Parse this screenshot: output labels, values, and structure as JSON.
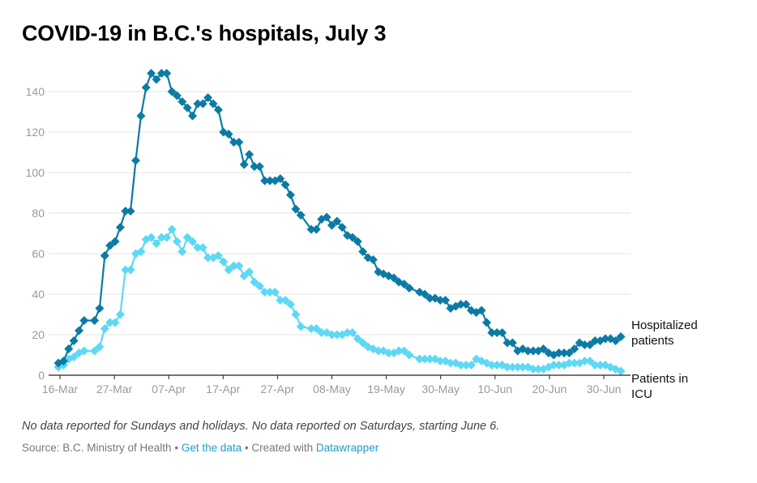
{
  "title": "COVID-19 in B.C.'s hospitals, July 3",
  "note": "No data reported for Sundays and holidays. No data reported on Saturdays, starting June 6.",
  "footer": {
    "source": "Source: B.C. Ministry of Health",
    "separator": " • ",
    "get_data": "Get the data",
    "created_with": "Created with ",
    "tool": "Datawrapper"
  },
  "chart_data": {
    "type": "line",
    "title": "COVID-19 in B.C.'s hospitals, July 3",
    "xlabel": "",
    "ylabel": "",
    "x_ticks": [
      "16-Mar",
      "27-Mar",
      "07-Apr",
      "17-Apr",
      "27-Apr",
      "08-May",
      "19-May",
      "30-May",
      "10-Jun",
      "20-Jun",
      "30-Jun"
    ],
    "y_ticks": [
      0,
      20,
      40,
      60,
      80,
      100,
      120,
      140
    ],
    "ylim": [
      0,
      150
    ],
    "x_range": [
      "2020-03-16",
      "2020-07-03"
    ],
    "grid": true,
    "series": [
      {
        "name": "Hospitalized patients",
        "color": "#0b7ba5",
        "marker": "diamond",
        "points": [
          [
            "2020-03-16",
            6
          ],
          [
            "2020-03-17",
            7
          ],
          [
            "2020-03-18",
            13
          ],
          [
            "2020-03-19",
            17
          ],
          [
            "2020-03-20",
            22
          ],
          [
            "2020-03-21",
            27
          ],
          [
            "2020-03-23",
            27
          ],
          [
            "2020-03-24",
            33
          ],
          [
            "2020-03-25",
            59
          ],
          [
            "2020-03-26",
            64
          ],
          [
            "2020-03-27",
            66
          ],
          [
            "2020-03-28",
            73
          ],
          [
            "2020-03-29",
            81
          ],
          [
            "2020-03-30",
            81
          ],
          [
            "2020-03-31",
            106
          ],
          [
            "2020-04-01",
            128
          ],
          [
            "2020-04-02",
            142
          ],
          [
            "2020-04-03",
            149
          ],
          [
            "2020-04-04",
            146
          ],
          [
            "2020-04-05",
            149
          ],
          [
            "2020-04-06",
            149
          ],
          [
            "2020-04-07",
            140
          ],
          [
            "2020-04-08",
            138
          ],
          [
            "2020-04-09",
            135
          ],
          [
            "2020-04-10",
            132
          ],
          [
            "2020-04-11",
            128
          ],
          [
            "2020-04-12",
            134
          ],
          [
            "2020-04-13",
            134
          ],
          [
            "2020-04-14",
            137
          ],
          [
            "2020-04-15",
            134
          ],
          [
            "2020-04-16",
            131
          ],
          [
            "2020-04-17",
            120
          ],
          [
            "2020-04-18",
            119
          ],
          [
            "2020-04-19",
            115
          ],
          [
            "2020-04-20",
            115
          ],
          [
            "2020-04-21",
            104
          ],
          [
            "2020-04-22",
            109
          ],
          [
            "2020-04-23",
            103
          ],
          [
            "2020-04-24",
            103
          ],
          [
            "2020-04-25",
            96
          ],
          [
            "2020-04-26",
            96
          ],
          [
            "2020-04-27",
            96
          ],
          [
            "2020-04-28",
            97
          ],
          [
            "2020-04-29",
            94
          ],
          [
            "2020-04-30",
            89
          ],
          [
            "2020-05-01",
            82
          ],
          [
            "2020-05-02",
            79
          ],
          [
            "2020-05-04",
            72
          ],
          [
            "2020-05-05",
            72
          ],
          [
            "2020-05-06",
            77
          ],
          [
            "2020-05-07",
            78
          ],
          [
            "2020-05-08",
            74
          ],
          [
            "2020-05-09",
            76
          ],
          [
            "2020-05-10",
            73
          ],
          [
            "2020-05-11",
            69
          ],
          [
            "2020-05-12",
            68
          ],
          [
            "2020-05-13",
            66
          ],
          [
            "2020-05-14",
            61
          ],
          [
            "2020-05-15",
            58
          ],
          [
            "2020-05-16",
            57
          ],
          [
            "2020-05-17",
            51
          ],
          [
            "2020-05-18",
            50
          ],
          [
            "2020-05-19",
            49
          ],
          [
            "2020-05-20",
            48
          ],
          [
            "2020-05-21",
            46
          ],
          [
            "2020-05-22",
            45
          ],
          [
            "2020-05-23",
            43
          ],
          [
            "2020-05-25",
            41
          ],
          [
            "2020-05-26",
            40
          ],
          [
            "2020-05-27",
            38
          ],
          [
            "2020-05-28",
            38
          ],
          [
            "2020-05-29",
            37
          ],
          [
            "2020-05-30",
            37
          ],
          [
            "2020-05-31",
            33
          ],
          [
            "2020-06-01",
            34
          ],
          [
            "2020-06-02",
            35
          ],
          [
            "2020-06-03",
            35
          ],
          [
            "2020-06-04",
            32
          ],
          [
            "2020-06-05",
            31
          ],
          [
            "2020-06-06",
            32
          ],
          [
            "2020-06-07",
            26
          ],
          [
            "2020-06-08",
            21
          ],
          [
            "2020-06-09",
            21
          ],
          [
            "2020-06-10",
            21
          ],
          [
            "2020-06-11",
            16
          ],
          [
            "2020-06-12",
            16
          ],
          [
            "2020-06-13",
            12
          ],
          [
            "2020-06-14",
            13
          ],
          [
            "2020-06-15",
            12
          ],
          [
            "2020-06-16",
            12
          ],
          [
            "2020-06-17",
            12
          ],
          [
            "2020-06-18",
            13
          ],
          [
            "2020-06-19",
            11
          ],
          [
            "2020-06-20",
            10
          ],
          [
            "2020-06-21",
            11
          ],
          [
            "2020-06-22",
            11
          ],
          [
            "2020-06-23",
            11
          ],
          [
            "2020-06-24",
            13
          ],
          [
            "2020-06-25",
            16
          ],
          [
            "2020-06-26",
            15
          ],
          [
            "2020-06-27",
            15
          ],
          [
            "2020-06-28",
            17
          ],
          [
            "2020-06-29",
            17
          ],
          [
            "2020-06-30",
            18
          ],
          [
            "2020-07-01",
            18
          ],
          [
            "2020-07-02",
            17
          ],
          [
            "2020-07-03",
            19
          ]
        ]
      },
      {
        "name": "Patients in ICU",
        "color": "#5dd8f5",
        "marker": "diamond",
        "points": [
          [
            "2020-03-16",
            4
          ],
          [
            "2020-03-17",
            5
          ],
          [
            "2020-03-18",
            8
          ],
          [
            "2020-03-19",
            9
          ],
          [
            "2020-03-20",
            11
          ],
          [
            "2020-03-21",
            12
          ],
          [
            "2020-03-23",
            12
          ],
          [
            "2020-03-24",
            14
          ],
          [
            "2020-03-25",
            23
          ],
          [
            "2020-03-26",
            26
          ],
          [
            "2020-03-27",
            26
          ],
          [
            "2020-03-28",
            30
          ],
          [
            "2020-03-29",
            52
          ],
          [
            "2020-03-30",
            52
          ],
          [
            "2020-03-31",
            60
          ],
          [
            "2020-04-01",
            61
          ],
          [
            "2020-04-02",
            67
          ],
          [
            "2020-04-03",
            68
          ],
          [
            "2020-04-04",
            65
          ],
          [
            "2020-04-05",
            68
          ],
          [
            "2020-04-06",
            68
          ],
          [
            "2020-04-07",
            72
          ],
          [
            "2020-04-08",
            66
          ],
          [
            "2020-04-09",
            61
          ],
          [
            "2020-04-10",
            68
          ],
          [
            "2020-04-11",
            66
          ],
          [
            "2020-04-12",
            63
          ],
          [
            "2020-04-13",
            63
          ],
          [
            "2020-04-14",
            58
          ],
          [
            "2020-04-15",
            58
          ],
          [
            "2020-04-16",
            59
          ],
          [
            "2020-04-17",
            56
          ],
          [
            "2020-04-18",
            52
          ],
          [
            "2020-04-19",
            54
          ],
          [
            "2020-04-20",
            54
          ],
          [
            "2020-04-21",
            49
          ],
          [
            "2020-04-22",
            51
          ],
          [
            "2020-04-23",
            46
          ],
          [
            "2020-04-24",
            44
          ],
          [
            "2020-04-25",
            41
          ],
          [
            "2020-04-26",
            41
          ],
          [
            "2020-04-27",
            41
          ],
          [
            "2020-04-28",
            37
          ],
          [
            "2020-04-29",
            37
          ],
          [
            "2020-04-30",
            35
          ],
          [
            "2020-05-01",
            30
          ],
          [
            "2020-05-02",
            24
          ],
          [
            "2020-05-04",
            23
          ],
          [
            "2020-05-05",
            23
          ],
          [
            "2020-05-06",
            21
          ],
          [
            "2020-05-07",
            21
          ],
          [
            "2020-05-08",
            20
          ],
          [
            "2020-05-09",
            20
          ],
          [
            "2020-05-10",
            20
          ],
          [
            "2020-05-11",
            21
          ],
          [
            "2020-05-12",
            21
          ],
          [
            "2020-05-13",
            18
          ],
          [
            "2020-05-14",
            16
          ],
          [
            "2020-05-15",
            14
          ],
          [
            "2020-05-16",
            13
          ],
          [
            "2020-05-17",
            12
          ],
          [
            "2020-05-18",
            12
          ],
          [
            "2020-05-19",
            11
          ],
          [
            "2020-05-20",
            11
          ],
          [
            "2020-05-21",
            12
          ],
          [
            "2020-05-22",
            12
          ],
          [
            "2020-05-23",
            10
          ],
          [
            "2020-05-25",
            8
          ],
          [
            "2020-05-26",
            8
          ],
          [
            "2020-05-27",
            8
          ],
          [
            "2020-05-28",
            8
          ],
          [
            "2020-05-29",
            7
          ],
          [
            "2020-05-30",
            7
          ],
          [
            "2020-05-31",
            6
          ],
          [
            "2020-06-01",
            6
          ],
          [
            "2020-06-02",
            5
          ],
          [
            "2020-06-03",
            5
          ],
          [
            "2020-06-04",
            5
          ],
          [
            "2020-06-05",
            8
          ],
          [
            "2020-06-06",
            7
          ],
          [
            "2020-06-07",
            6
          ],
          [
            "2020-06-08",
            5
          ],
          [
            "2020-06-09",
            5
          ],
          [
            "2020-06-10",
            5
          ],
          [
            "2020-06-11",
            4
          ],
          [
            "2020-06-12",
            4
          ],
          [
            "2020-06-13",
            4
          ],
          [
            "2020-06-14",
            4
          ],
          [
            "2020-06-15",
            4
          ],
          [
            "2020-06-16",
            3
          ],
          [
            "2020-06-17",
            3
          ],
          [
            "2020-06-18",
            3
          ],
          [
            "2020-06-19",
            4
          ],
          [
            "2020-06-20",
            5
          ],
          [
            "2020-06-21",
            5
          ],
          [
            "2020-06-22",
            5
          ],
          [
            "2020-06-23",
            6
          ],
          [
            "2020-06-24",
            6
          ],
          [
            "2020-06-25",
            6
          ],
          [
            "2020-06-26",
            7
          ],
          [
            "2020-06-27",
            7
          ],
          [
            "2020-06-28",
            5
          ],
          [
            "2020-06-29",
            5
          ],
          [
            "2020-06-30",
            5
          ],
          [
            "2020-07-01",
            4
          ],
          [
            "2020-07-02",
            3
          ],
          [
            "2020-07-03",
            2
          ]
        ]
      }
    ]
  }
}
